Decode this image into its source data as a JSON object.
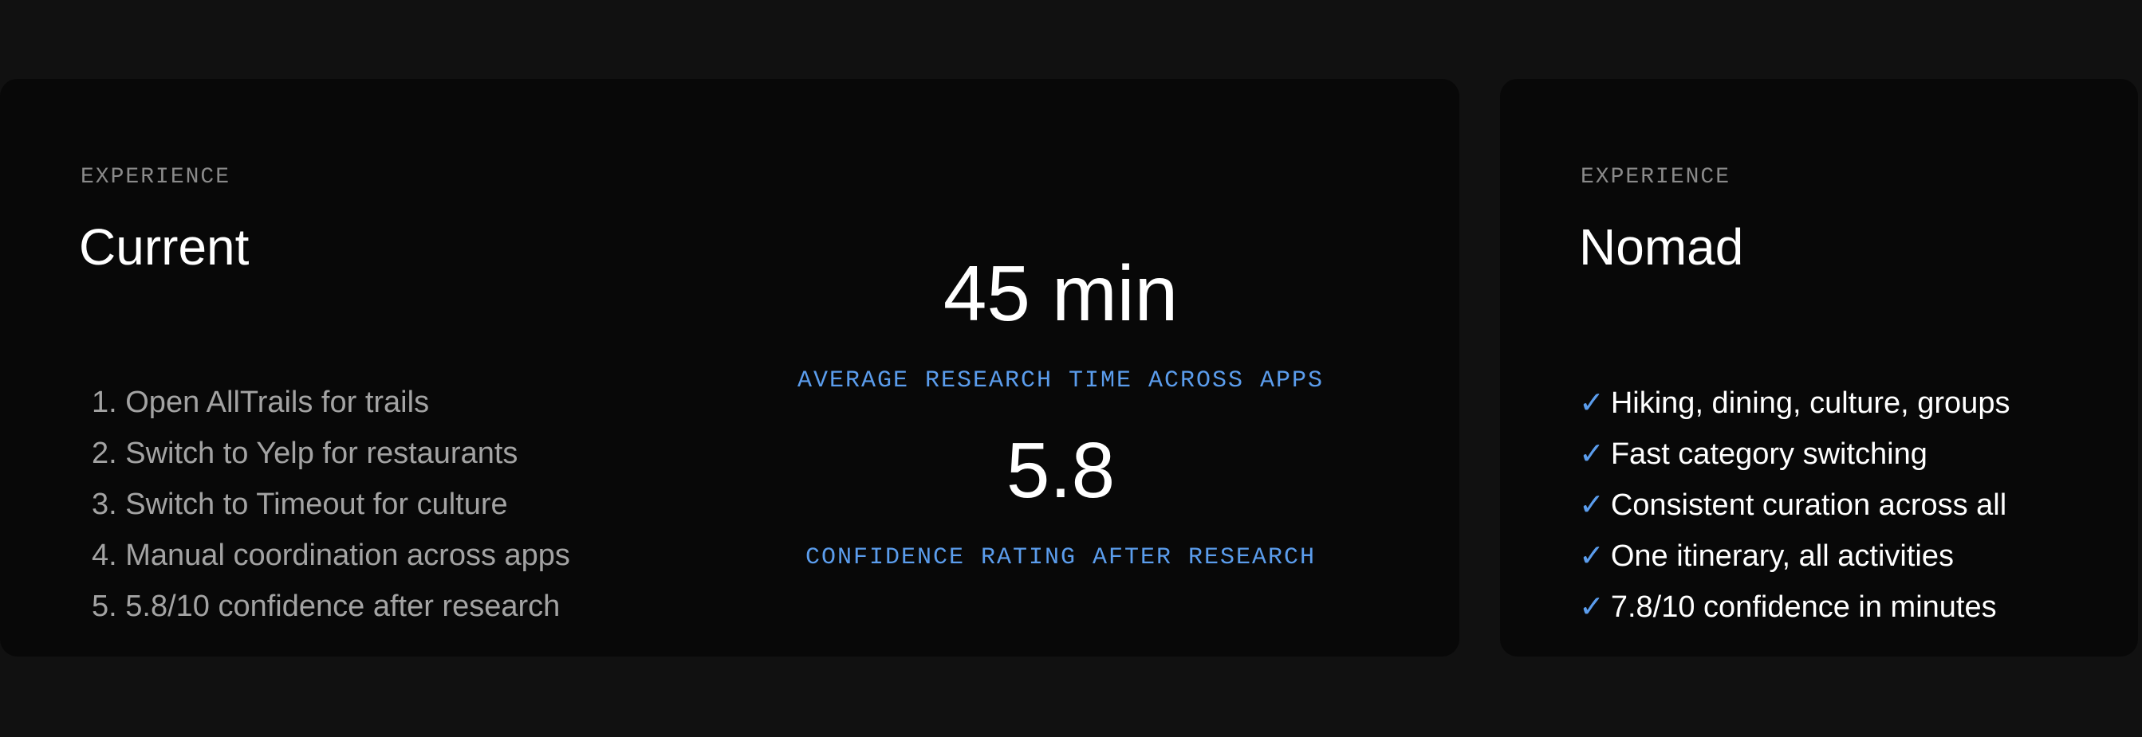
{
  "current": {
    "eyebrow": "EXPERIENCE",
    "title": "Current",
    "steps": [
      "1. Open AllTrails for trails",
      "2. Switch to Yelp for restaurants",
      "3. Switch to Timeout for culture",
      "4. Manual coordination across apps",
      "5. 5.8/10 confidence after research"
    ],
    "stats": [
      {
        "value": "45 min",
        "label": "AVERAGE RESEARCH TIME ACROSS APPS"
      },
      {
        "value": "5.8",
        "label": "CONFIDENCE RATING AFTER RESEARCH"
      }
    ]
  },
  "nomad": {
    "eyebrow": "EXPERIENCE",
    "title": "Nomad",
    "check_glyph": "✓",
    "features": [
      "Hiking, dining, culture, groups",
      "Fast category switching",
      "Consistent curation across all",
      "One itinerary, all activities",
      "7.8/10 confidence in minutes"
    ]
  },
  "colors": {
    "accent": "#5b9ded",
    "background": "#111111",
    "card": "#080808"
  }
}
